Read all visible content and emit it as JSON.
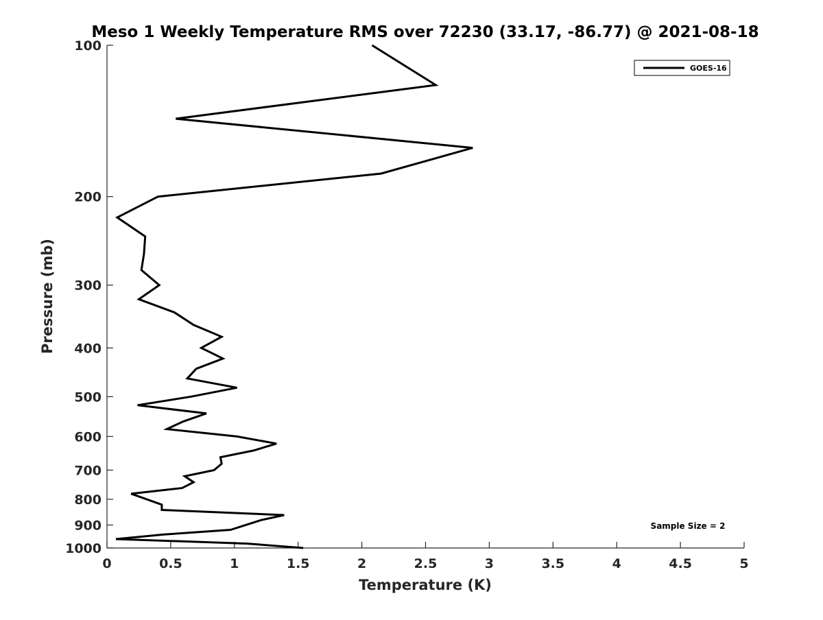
{
  "chart_data": {
    "type": "line",
    "title": "Meso 1 Weekly Temperature RMS over 72230 (33.17, -86.77) @ 2021-08-18",
    "xlabel": "Temperature (K)",
    "ylabel": "Pressure (mb)",
    "xlim": [
      0,
      5
    ],
    "ylim": [
      100,
      1000
    ],
    "yscale": "log",
    "yreversed": true,
    "xticks": [
      "0",
      "0.5",
      "1",
      "1.5",
      "2",
      "2.5",
      "3",
      "3.5",
      "4",
      "4.5",
      "5"
    ],
    "yticks": [
      "100",
      "200",
      "300",
      "400",
      "500",
      "600",
      "700",
      "800",
      "900",
      "1000"
    ],
    "grid": false,
    "legend": {
      "placement": "top-right",
      "entries": [
        "GOES-16"
      ]
    },
    "annotation": "Sample Size = 2",
    "series": [
      {
        "name": "GOES-16",
        "color": "#000000",
        "points": [
          [
            2.08,
            100
          ],
          [
            2.58,
            120
          ],
          [
            0.54,
            140
          ],
          [
            2.87,
            160
          ],
          [
            2.15,
            180
          ],
          [
            0.4,
            200
          ],
          [
            0.08,
            220
          ],
          [
            0.3,
            240
          ],
          [
            0.29,
            260
          ],
          [
            0.27,
            280
          ],
          [
            0.41,
            300
          ],
          [
            0.25,
            320
          ],
          [
            0.53,
            340
          ],
          [
            0.68,
            360
          ],
          [
            0.9,
            380
          ],
          [
            0.74,
            400
          ],
          [
            0.91,
            420
          ],
          [
            0.7,
            440
          ],
          [
            0.63,
            460
          ],
          [
            1.02,
            480
          ],
          [
            0.66,
            500
          ],
          [
            0.24,
            520
          ],
          [
            0.78,
            540
          ],
          [
            0.6,
            560
          ],
          [
            0.47,
            580
          ],
          [
            1.02,
            600
          ],
          [
            1.33,
            620
          ],
          [
            1.15,
            640
          ],
          [
            0.89,
            660
          ],
          [
            0.9,
            680
          ],
          [
            0.84,
            700
          ],
          [
            0.61,
            720
          ],
          [
            0.68,
            740
          ],
          [
            0.59,
            760
          ],
          [
            0.19,
            780
          ],
          [
            0.43,
            820
          ],
          [
            0.43,
            840
          ],
          [
            1.39,
            860
          ],
          [
            1.21,
            880
          ],
          [
            0.97,
            920
          ],
          [
            0.45,
            940
          ],
          [
            0.07,
            960
          ],
          [
            1.1,
            980
          ],
          [
            1.54,
            1000
          ]
        ]
      }
    ]
  }
}
